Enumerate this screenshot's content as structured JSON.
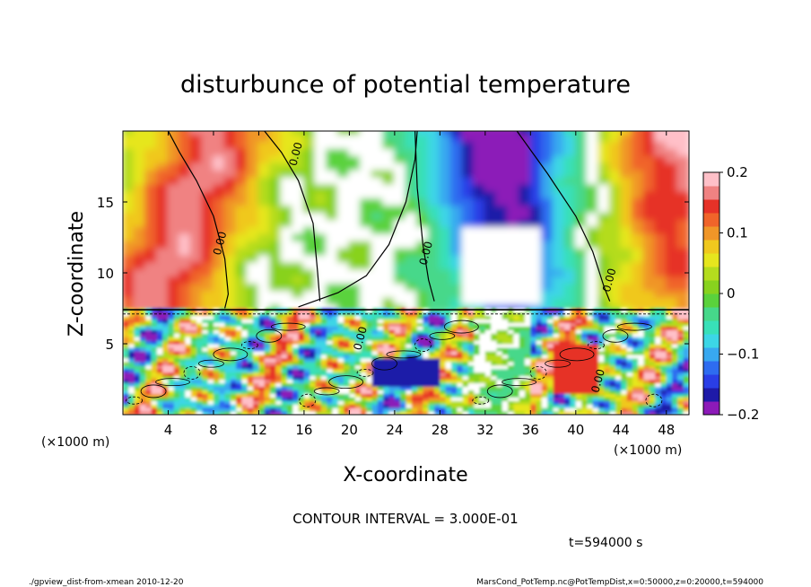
{
  "chart_data": {
    "type": "heatmap",
    "title": "disturbunce of potential temperature",
    "xlabel": "X-coordinate",
    "ylabel": "Z-coordinate",
    "x_unit": "(×1000 m)",
    "y_unit": "(×1000 m)",
    "xlim": [
      0,
      50
    ],
    "ylim": [
      0,
      20
    ],
    "x_ticks": [
      4,
      8,
      12,
      16,
      20,
      24,
      28,
      32,
      36,
      40,
      44,
      48
    ],
    "y_ticks": [
      5,
      10,
      15
    ],
    "colorbar": {
      "range": [
        -0.2,
        0.2
      ],
      "ticks": [
        0.2,
        0.1,
        0,
        -0.1,
        -0.2
      ],
      "tick_labels": [
        "0.2",
        "0.1",
        "0",
        "−0.1",
        "−0.2"
      ],
      "colors": [
        "#8c1ab8",
        "#1e1aa8",
        "#2a3ee6",
        "#2e6cf0",
        "#38a8f0",
        "#3cd6e6",
        "#38e0b8",
        "#46d88a",
        "#5ad23c",
        "#88d21e",
        "#b4dc1e",
        "#e6e61e",
        "#f0c81e",
        "#f09628",
        "#f0642a",
        "#e63228",
        "#f08282",
        "#ffc0c8"
      ],
      "contour_labels": "0.00"
    },
    "annotations": {
      "contour_interval": "CONTOUR INTERVAL = 3.000E-01",
      "time": "t=594000 s",
      "footer_left": "./gpview_dist-from-xmean  2010-12-20",
      "footer_right": "MarsCond_PotTemp.nc@PotTempDist,x=0:50000,z=0:20000,t=594000"
    },
    "features": [
      {
        "kind": "warm anomaly",
        "x_range": [
          0,
          8
        ],
        "z_range": [
          7.3,
          20
        ],
        "value": 0.16
      },
      {
        "kind": "warm anomaly",
        "x_range": [
          42,
          50
        ],
        "z_range": [
          7.3,
          20
        ],
        "value": 0.16
      },
      {
        "kind": "near-zero",
        "x_range": [
          8,
          26
        ],
        "z_range": [
          7.3,
          20
        ],
        "value": 0.0
      },
      {
        "kind": "cold anomaly",
        "x_range": [
          27,
          42
        ],
        "z_range": [
          7.3,
          20
        ],
        "value": -0.19
      },
      {
        "kind": "interface",
        "z": 7.3
      }
    ]
  }
}
